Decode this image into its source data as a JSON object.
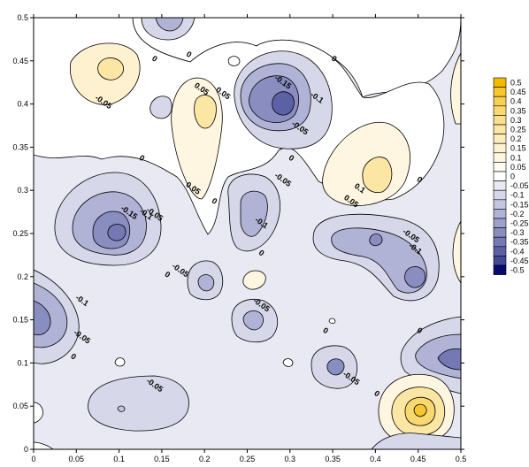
{
  "chart_data": {
    "type": "contour",
    "title": "",
    "xlabel": "",
    "ylabel": "",
    "xlim": [
      0,
      0.5
    ],
    "ylim": [
      0,
      0.5
    ],
    "x_ticks": [
      "0",
      "0.05",
      "0.1",
      "0.15",
      "0.2",
      "0.25",
      "0.3",
      "0.35",
      "0.4",
      "0.45",
      "0.5"
    ],
    "y_ticks": [
      "0",
      "0.05",
      "0.1",
      "0.15",
      "0.2",
      "0.25",
      "0.3",
      "0.35",
      "0.4",
      "0.45",
      "0.5"
    ],
    "colorbar": {
      "levels": [
        "0.5",
        "0.45",
        "0.4",
        "0.35",
        "0.3",
        "0.25",
        "0.2",
        "0.15",
        "0.1",
        "0.05",
        "0",
        "-0.05",
        "-0.1",
        "-0.15",
        "-0.2",
        "-0.25",
        "-0.3",
        "-0.35",
        "-0.4",
        "-0.45",
        "-0.5"
      ],
      "colors": [
        "#f5b800",
        "#f7c52e",
        "#f8cf52",
        "#f9d870",
        "#fae08c",
        "#fbe6a4",
        "#fcecba",
        "#fdf1cf",
        "#fef6e0",
        "#fffbf0",
        "#ffffff",
        "#e8e9f2",
        "#d6d8e9",
        "#c3c6df",
        "#b0b3d5",
        "#9da0ca",
        "#898dbf",
        "#7479b3",
        "#5c61a5",
        "#434896",
        "#0a0a6e"
      ]
    },
    "contour_labels": [
      {
        "text": "-0.15",
        "x": 0.29,
        "y": 0.423
      },
      {
        "text": "-0.1",
        "x": 0.33,
        "y": 0.405
      },
      {
        "text": "-0.05",
        "x": 0.31,
        "y": 0.37
      },
      {
        "text": "0",
        "x": 0.35,
        "y": 0.45
      },
      {
        "text": "0",
        "x": 0.14,
        "y": 0.45
      },
      {
        "text": "0",
        "x": 0.18,
        "y": 0.455
      },
      {
        "text": "0.05",
        "x": 0.195,
        "y": 0.415
      },
      {
        "text": "0.05",
        "x": 0.22,
        "y": 0.41
      },
      {
        "text": "-0.05",
        "x": 0.08,
        "y": 0.4
      },
      {
        "text": "0",
        "x": 0.125,
        "y": 0.335
      },
      {
        "text": "0.05",
        "x": 0.185,
        "y": 0.3
      },
      {
        "text": "0",
        "x": 0.21,
        "y": 0.285
      },
      {
        "text": "0",
        "x": 0.3,
        "y": 0.335
      },
      {
        "text": "-0.05",
        "x": 0.29,
        "y": 0.31
      },
      {
        "text": "0",
        "x": 0.45,
        "y": 0.31
      },
      {
        "text": "0.1",
        "x": 0.38,
        "y": 0.3
      },
      {
        "text": "0.05",
        "x": 0.37,
        "y": 0.285
      },
      {
        "text": "-0.15",
        "x": 0.11,
        "y": 0.272
      },
      {
        "text": "-0.1",
        "x": 0.13,
        "y": 0.27
      },
      {
        "text": "-0.05",
        "x": 0.14,
        "y": 0.27
      },
      {
        "text": "-0.1",
        "x": 0.265,
        "y": 0.26
      },
      {
        "text": "0",
        "x": 0.265,
        "y": 0.225
      },
      {
        "text": "-0.05",
        "x": 0.44,
        "y": 0.245
      },
      {
        "text": "-0.1",
        "x": 0.445,
        "y": 0.23
      },
      {
        "text": "0",
        "x": 0.155,
        "y": 0.2
      },
      {
        "text": "-0.05",
        "x": 0.17,
        "y": 0.205
      },
      {
        "text": "-0.05",
        "x": 0.265,
        "y": 0.165
      },
      {
        "text": "-0.1",
        "x": 0.055,
        "y": 0.17
      },
      {
        "text": "-0.05",
        "x": 0.055,
        "y": 0.128
      },
      {
        "text": "0",
        "x": 0.045,
        "y": 0.105
      },
      {
        "text": "0",
        "x": 0.34,
        "y": 0.135
      },
      {
        "text": "0",
        "x": 0.45,
        "y": 0.135
      },
      {
        "text": "-0.05",
        "x": 0.14,
        "y": 0.072
      },
      {
        "text": "-0.05",
        "x": 0.37,
        "y": 0.08
      },
      {
        "text": "0",
        "x": 0.4,
        "y": 0.062
      }
    ]
  }
}
